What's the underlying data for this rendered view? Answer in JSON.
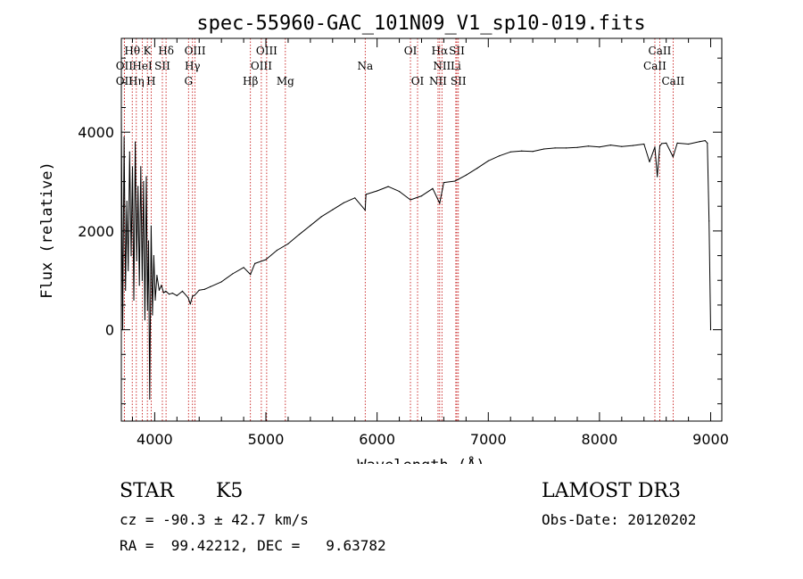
{
  "chart_data": {
    "type": "line",
    "title": "spec-55960-GAC_101N09_V1_sp10-019.fits",
    "xlabel": "Wavelength (Å)",
    "ylabel": "Flux (relative)",
    "xlim": [
      3700,
      9100
    ],
    "ylim": [
      -1850,
      5900
    ],
    "xticks": [
      4000,
      5000,
      6000,
      7000,
      8000,
      9000
    ],
    "yticks": [
      0,
      2000,
      4000
    ],
    "grid": false,
    "series": [
      {
        "name": "spectrum",
        "x": [
          3700,
          3712,
          3725,
          3738,
          3750,
          3762,
          3775,
          3788,
          3800,
          3812,
          3825,
          3838,
          3850,
          3862,
          3875,
          3888,
          3900,
          3912,
          3925,
          3935,
          3945,
          3955,
          3968,
          3980,
          3992,
          4005,
          4020,
          4040,
          4060,
          4080,
          4100,
          4130,
          4160,
          4200,
          4250,
          4300,
          4320,
          4340,
          4360,
          4400,
          4450,
          4500,
          4600,
          4700,
          4800,
          4861,
          4900,
          5000,
          5100,
          5200,
          5300,
          5400,
          5500,
          5600,
          5700,
          5800,
          5893,
          5900,
          6000,
          6100,
          6200,
          6300,
          6400,
          6500,
          6563,
          6600,
          6700,
          6800,
          6900,
          7000,
          7100,
          7200,
          7300,
          7400,
          7500,
          7600,
          7700,
          7800,
          7900,
          8000,
          8100,
          8200,
          8300,
          8400,
          8450,
          8498,
          8520,
          8542,
          8560,
          8600,
          8662,
          8700,
          8800,
          8900,
          8950,
          8970,
          8985,
          9000
        ],
        "y": [
          4400,
          0,
          3900,
          800,
          2600,
          1200,
          3600,
          1500,
          3300,
          600,
          3800,
          1400,
          2900,
          900,
          3300,
          1000,
          3000,
          200,
          3100,
          400,
          1800,
          -1400,
          2100,
          300,
          1500,
          600,
          1100,
          800,
          900,
          750,
          780,
          720,
          740,
          690,
          780,
          650,
          520,
          680,
          700,
          800,
          820,
          870,
          970,
          1130,
          1260,
          1120,
          1340,
          1420,
          1610,
          1740,
          1930,
          2110,
          2290,
          2430,
          2570,
          2670,
          2420,
          2740,
          2810,
          2900,
          2800,
          2630,
          2710,
          2860,
          2560,
          2980,
          3010,
          3130,
          3270,
          3420,
          3520,
          3600,
          3620,
          3610,
          3660,
          3680,
          3680,
          3690,
          3720,
          3700,
          3740,
          3710,
          3730,
          3760,
          3400,
          3700,
          3100,
          3720,
          3770,
          3780,
          3500,
          3780,
          3760,
          3810,
          3830,
          3780,
          2200,
          0
        ]
      }
    ],
    "lines": [
      {
        "label": "Hθ",
        "wave": 3798,
        "row": 0
      },
      {
        "label": "OII",
        "wave": 3727,
        "row": 1
      },
      {
        "label": "OII",
        "wave": 3727,
        "row": 2
      },
      {
        "label": "K",
        "wave": 3934,
        "row": 0
      },
      {
        "label": "HeI",
        "wave": 3889,
        "row": 1
      },
      {
        "label": "Hη",
        "wave": 3835,
        "row": 2
      },
      {
        "label": "SII",
        "wave": 4069,
        "row": 1
      },
      {
        "label": "H",
        "wave": 3968,
        "row": 2
      },
      {
        "label": "Hδ",
        "wave": 4102,
        "row": 0
      },
      {
        "label": "OIII",
        "wave": 4363,
        "row": 0
      },
      {
        "label": "Hγ",
        "wave": 4340,
        "row": 1
      },
      {
        "label": "G",
        "wave": 4304,
        "row": 2
      },
      {
        "label": "OIII",
        "wave": 5007,
        "row": 0
      },
      {
        "label": "OIII",
        "wave": 4959,
        "row": 1
      },
      {
        "label": "Hβ",
        "wave": 4861,
        "row": 2
      },
      {
        "label": "Mg",
        "wave": 5175,
        "row": 2
      },
      {
        "label": "Na",
        "wave": 5893,
        "row": 1
      },
      {
        "label": "OI",
        "wave": 6300,
        "row": 0
      },
      {
        "label": "OI",
        "wave": 6364,
        "row": 2
      },
      {
        "label": "Hα",
        "wave": 6563,
        "row": 0
      },
      {
        "label": "NII",
        "wave": 6583,
        "row": 1
      },
      {
        "label": "NII",
        "wave": 6548,
        "row": 2
      },
      {
        "label": "SII",
        "wave": 6717,
        "row": 0
      },
      {
        "label": "Li",
        "wave": 6708,
        "row": 1
      },
      {
        "label": "SII",
        "wave": 6731,
        "row": 2
      },
      {
        "label": "CaII",
        "wave": 8542,
        "row": 0
      },
      {
        "label": "CaII",
        "wave": 8498,
        "row": 1
      },
      {
        "label": "CaII",
        "wave": 8662,
        "row": 2
      }
    ]
  },
  "info": {
    "class": "STAR",
    "subclass": "K5",
    "survey": "LAMOST DR3",
    "cz": "cz = -90.3 ± 42.7 km/s",
    "obs_date": "Obs-Date: 20120202",
    "coords": "RA =  99.42212, DEC =   9.63782"
  }
}
